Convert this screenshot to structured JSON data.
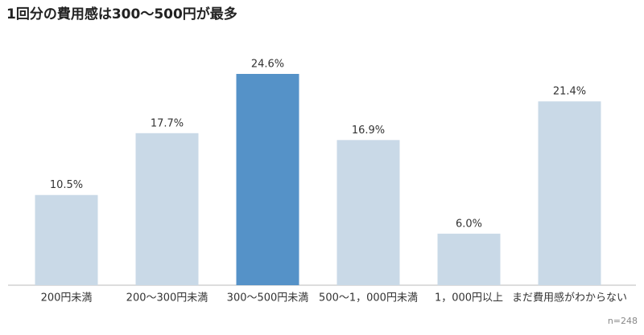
{
  "chart_data": {
    "type": "bar",
    "title": "1回分の費用感は300〜500円が最多",
    "categories": [
      "200円未満",
      "200〜300円未満",
      "300〜500円未満",
      "500〜1，000円未満",
      "1，000円以上",
      "まだ費用感がわからない"
    ],
    "values": [
      10.5,
      17.7,
      24.6,
      16.9,
      6.0,
      21.4
    ],
    "value_labels": [
      "10.5%",
      "17.7%",
      "24.6%",
      "16.9%",
      "6.0%",
      "21.4%"
    ],
    "colors": [
      "#c9d9e7",
      "#c9d9e7",
      "#5592c8",
      "#c9d9e7",
      "#c9d9e7",
      "#c9d9e7"
    ],
    "note": "n=248"
  }
}
